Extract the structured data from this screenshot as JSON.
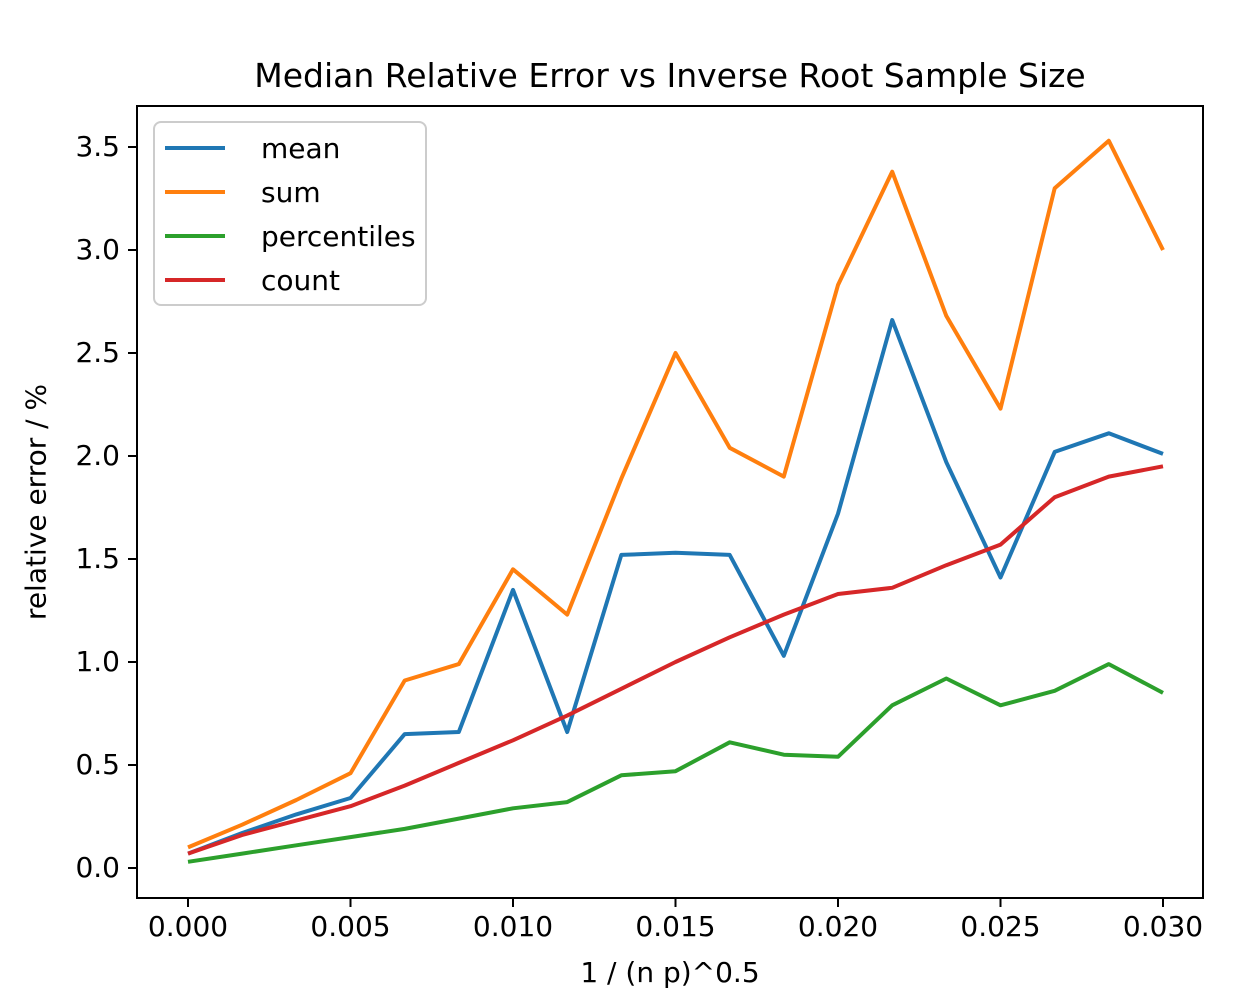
{
  "chart_data": {
    "type": "line",
    "title": "Median Relative Error vs Inverse Root Sample Size",
    "xlabel": "1 / (n p)^0.5",
    "ylabel": "relative error / %",
    "x": [
      0.0,
      0.001667,
      0.003333,
      0.005,
      0.006667,
      0.008333,
      0.01,
      0.011667,
      0.013333,
      0.015,
      0.016667,
      0.018333,
      0.02,
      0.021667,
      0.023333,
      0.025,
      0.026667,
      0.028333,
      0.03
    ],
    "series": [
      {
        "name": "mean",
        "color": "#1f77b4",
        "values": [
          0.07,
          0.17,
          0.26,
          0.34,
          0.65,
          0.66,
          1.35,
          0.66,
          1.52,
          1.53,
          1.52,
          1.03,
          1.72,
          2.66,
          1.97,
          1.41,
          2.02,
          2.11,
          2.01
        ]
      },
      {
        "name": "sum",
        "color": "#ff7f0e",
        "values": [
          0.1,
          0.21,
          0.33,
          0.46,
          0.91,
          0.99,
          1.45,
          1.23,
          1.89,
          2.5,
          2.04,
          1.9,
          2.83,
          3.38,
          2.68,
          2.23,
          3.3,
          3.53,
          3.0
        ]
      },
      {
        "name": "percentiles",
        "color": "#2ca02c",
        "values": [
          0.03,
          0.07,
          0.11,
          0.15,
          0.19,
          0.24,
          0.29,
          0.32,
          0.45,
          0.47,
          0.61,
          0.55,
          0.54,
          0.79,
          0.92,
          0.79,
          0.86,
          0.99,
          0.85
        ]
      },
      {
        "name": "count",
        "color": "#d62728",
        "values": [
          0.07,
          0.16,
          0.23,
          0.3,
          0.4,
          0.51,
          0.62,
          0.74,
          0.87,
          1.0,
          1.12,
          1.23,
          1.33,
          1.36,
          1.47,
          1.57,
          1.8,
          1.9,
          1.95
        ]
      }
    ],
    "x_tick_labels": [
      "0.000",
      "0.005",
      "0.010",
      "0.015",
      "0.020",
      "0.025",
      "0.030"
    ],
    "y_tick_labels": [
      "0.0",
      "0.5",
      "1.0",
      "1.5",
      "2.0",
      "2.5",
      "3.0",
      "3.5"
    ],
    "xlim": [
      -0.0015,
      0.0316
    ],
    "ylim": [
      -0.15,
      3.7
    ],
    "grid": false,
    "legend_position": "upper left"
  }
}
